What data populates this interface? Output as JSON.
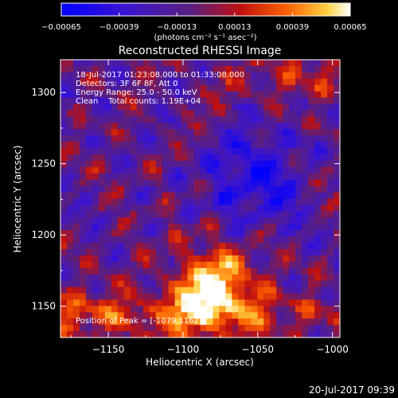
{
  "chart_data": {
    "type": "heatmap",
    "title": "Reconstructed RHESSI Image",
    "xlabel": "Heliocentric X (arcsec)",
    "ylabel": "Heliocentric Y (arcsec)",
    "xlim": [
      -1182,
      -995
    ],
    "ylim": [
      1128,
      1323
    ],
    "x_ticks": [
      -1150,
      -1100,
      -1050,
      -1000
    ],
    "x_tick_labels": [
      "−1150",
      "−1100",
      "−1050",
      "−1000"
    ],
    "y_ticks": [
      1150,
      1200,
      1250,
      1300
    ],
    "y_tick_labels": [
      "1150",
      "1200",
      "1250",
      "1300"
    ],
    "colorbar": {
      "range": [
        -0.00065,
        0.00065
      ],
      "ticks": [
        -0.00065,
        -0.00039,
        -0.00013,
        0.00013,
        0.00039,
        0.00065
      ],
      "tick_labels": [
        "−0.00065",
        "−0.00039",
        "−0.00013",
        "0.00013",
        "0.00039",
        "0.00065"
      ],
      "unit_label": "(photons cm⁻² s⁻¹ asec⁻²)",
      "colors": [
        "#0000ff",
        "#5a1fb0",
        "#8a1a3a",
        "#ff2000",
        "#ffa000",
        "#ffffff"
      ]
    },
    "annotations": {
      "time_range": "18-Jul-2017 01:23:08.000 to 01:33:08.000",
      "detectors": "Detectors: 3F 6F 8F, Att 0",
      "energy": "Energy Range: 25.0 - 50.0 keV",
      "clean": "Clean    Total counts: 1.19E+04",
      "peak": "Position of Peak = [-1079,1162]"
    },
    "peak": {
      "x": -1079,
      "y": 1162
    },
    "grid": false
  },
  "footer": {
    "timestamp": "20-Jul-2017 09:39"
  }
}
